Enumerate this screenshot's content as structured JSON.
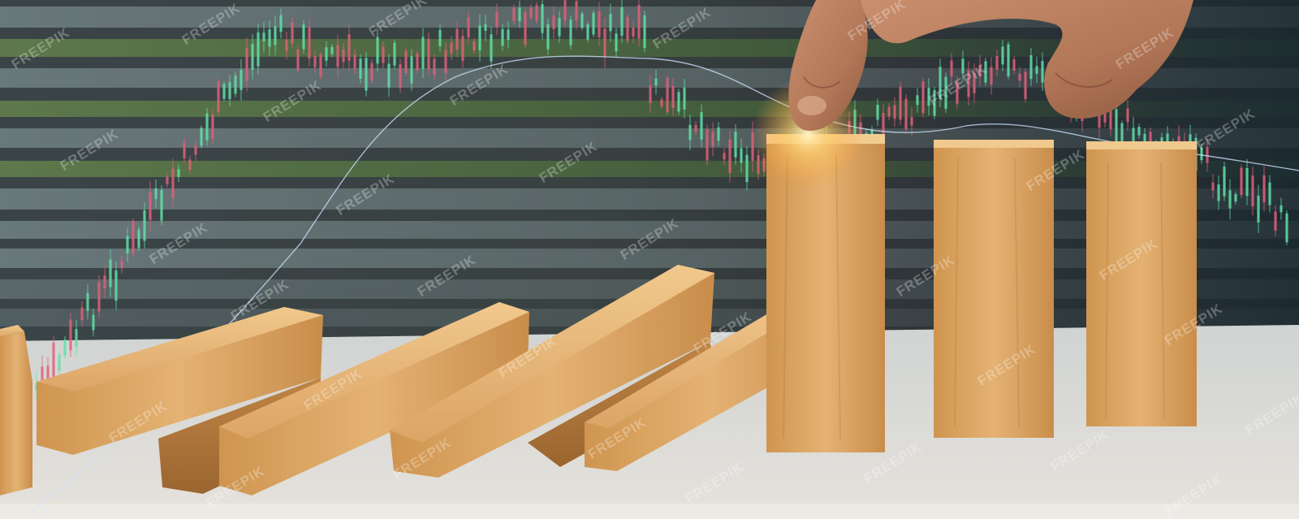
{
  "image": {
    "subject": "hand-pushing-wooden-dominoes",
    "watermark_text": "FREEPIK"
  },
  "colors": {
    "wood_light": "#e8b97a",
    "wood_mid": "#d59e5c",
    "wood_dark": "#a8713a",
    "table": "#d9d6d1",
    "candle_up": "#62e0a8",
    "candle_down": "#e0607a",
    "moving_average": "#cfe4ff",
    "glow": "#ffcf6a"
  },
  "icons": [
    "hand-graphic",
    "domino-blocks",
    "candlestick-overlay"
  ]
}
